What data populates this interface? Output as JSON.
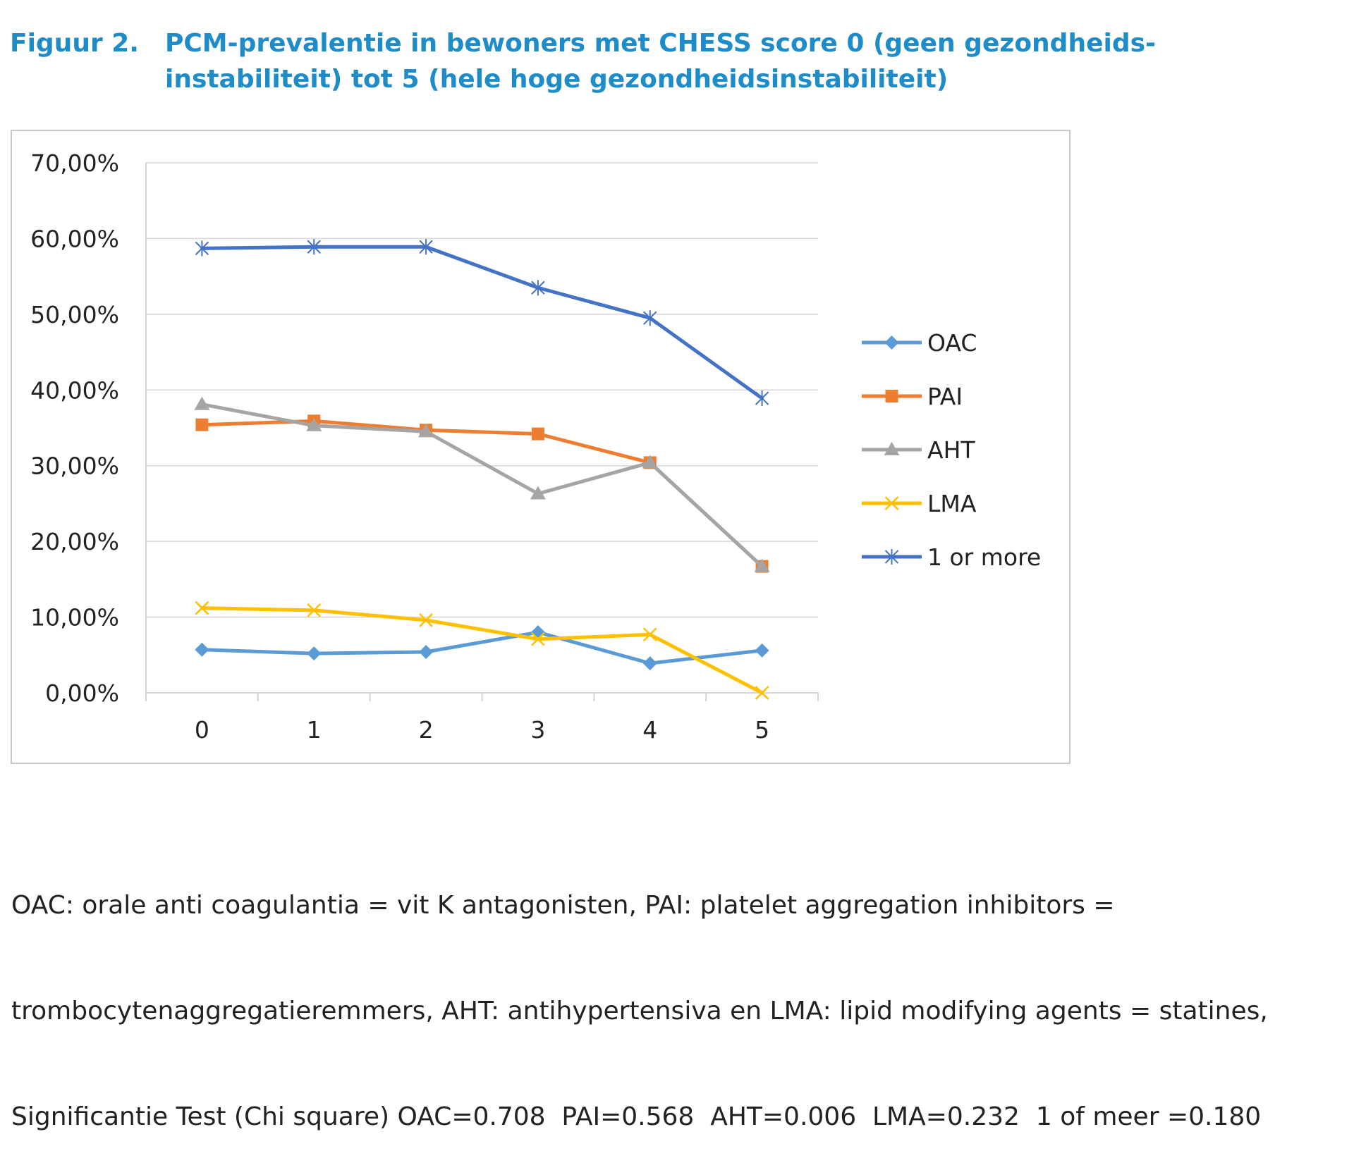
{
  "figure": {
    "number": "Figuur 2.",
    "title_line1": "PCM-prevalentie in bewoners met CHESS score 0 (geen gezondheids-",
    "title_line2": "instabiliteit) tot 5 (hele hoge gezondheidsinstabiliteit)"
  },
  "caption": {
    "line1": "OAC: orale anti coagulantia = vit K antagonisten, PAI: platelet aggregation inhibitors =",
    "line2": "trombocytenaggregatieremmers, AHT: antihypertensiva en LMA: lipid modifying agents = statines,",
    "line3": "Significantie Test (Chi square) OAC=0.708  PAI=0.568  AHT=0.006  LMA=0.232  1 of meer =0.180"
  },
  "chart_data": {
    "type": "line",
    "title": "",
    "xlabel": "",
    "ylabel": "",
    "categories": [
      "0",
      "1",
      "2",
      "3",
      "4",
      "5"
    ],
    "ylim": [
      0,
      70
    ],
    "yticks": [
      "0,00%",
      "10,00%",
      "20,00%",
      "30,00%",
      "40,00%",
      "50,00%",
      "60,00%",
      "70,00%"
    ],
    "grid": "horizontal",
    "legend_position": "right",
    "series": [
      {
        "name": "OAC",
        "color": "#5b9bd5",
        "marker": "diamond",
        "values": [
          5.7,
          5.2,
          5.4,
          8.0,
          3.9,
          5.6
        ]
      },
      {
        "name": "PAI",
        "color": "#ed7d31",
        "marker": "square",
        "values": [
          35.4,
          35.9,
          34.7,
          34.2,
          30.4,
          16.7
        ]
      },
      {
        "name": "AHT",
        "color": "#a5a5a5",
        "marker": "triangle",
        "values": [
          38.1,
          35.3,
          34.5,
          26.3,
          30.4,
          16.7
        ]
      },
      {
        "name": "LMA",
        "color": "#ffc000",
        "marker": "x",
        "values": [
          11.2,
          10.9,
          9.6,
          7.1,
          7.7,
          0.0
        ]
      },
      {
        "name": "1 or more",
        "color": "#4472c4",
        "marker": "star",
        "values": [
          58.7,
          58.9,
          58.9,
          53.5,
          49.5,
          38.9
        ]
      }
    ]
  }
}
